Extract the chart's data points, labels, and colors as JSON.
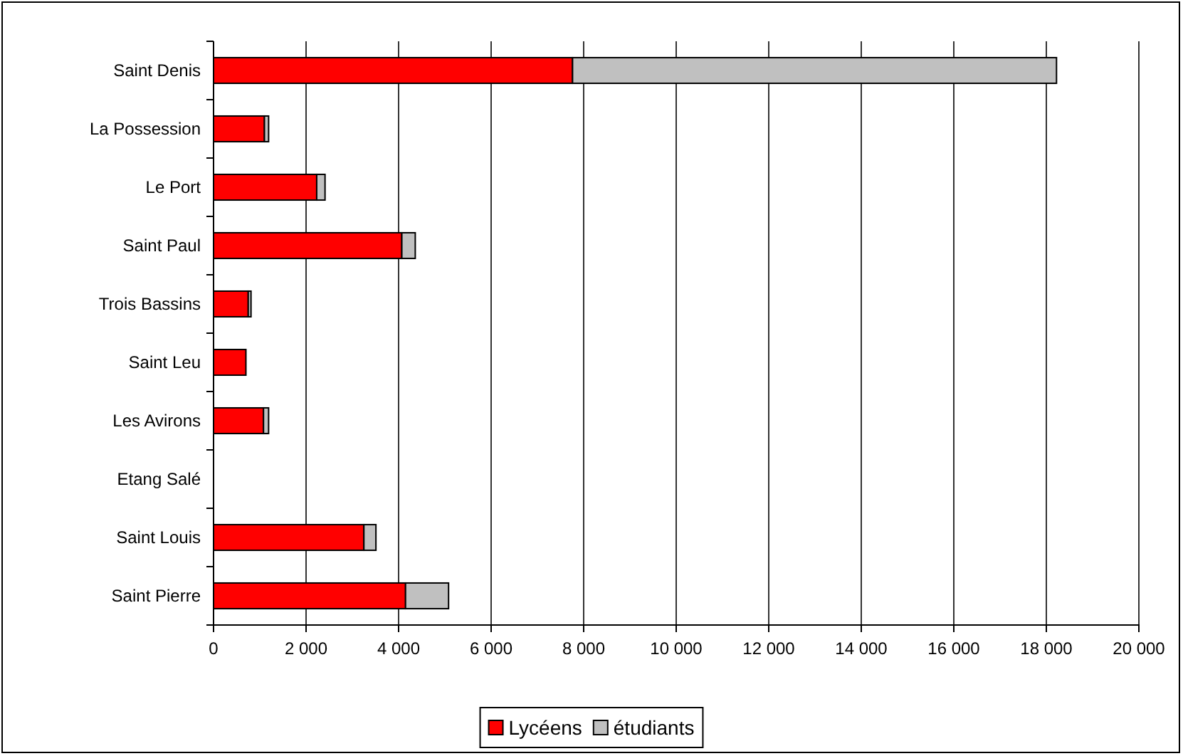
{
  "chart_data": {
    "type": "bar",
    "orientation": "horizontal",
    "stacked": true,
    "categories": [
      "Saint Denis",
      "La Possession",
      "Le Port",
      "Saint Paul",
      "Trois Bassins",
      "Saint Leu",
      "Les Avirons",
      "Etang Salé",
      "Saint Louis",
      "Saint Pierre"
    ],
    "series": [
      {
        "name": "Lycéens",
        "color": "#ff0000",
        "values": [
          7760,
          1100,
          2230,
          4070,
          750,
          700,
          1080,
          null,
          3250,
          4150
        ]
      },
      {
        "name": "étudiants",
        "color": "#c0c0c0",
        "values": [
          10460,
          90,
          180,
          290,
          60,
          null,
          110,
          null,
          260,
          930
        ]
      }
    ],
    "xlim": [
      0,
      20000
    ],
    "xticks": [
      0,
      {
        "value": 2000,
        "label": "2 000"
      },
      {
        "value": 4000,
        "label": "4 000"
      },
      {
        "value": 6000,
        "label": "6 000"
      },
      {
        "value": 8000,
        "label": "8 000"
      },
      {
        "value": 10000,
        "label": "10 000"
      },
      {
        "value": 12000,
        "label": "12 000"
      },
      {
        "value": 14000,
        "label": "14 000"
      },
      {
        "value": 16000,
        "label": "16 000"
      },
      {
        "value": 18000,
        "label": "18 000"
      },
      {
        "value": 20000,
        "label": "20 000"
      }
    ],
    "grid": "x",
    "legend": "bottom"
  }
}
